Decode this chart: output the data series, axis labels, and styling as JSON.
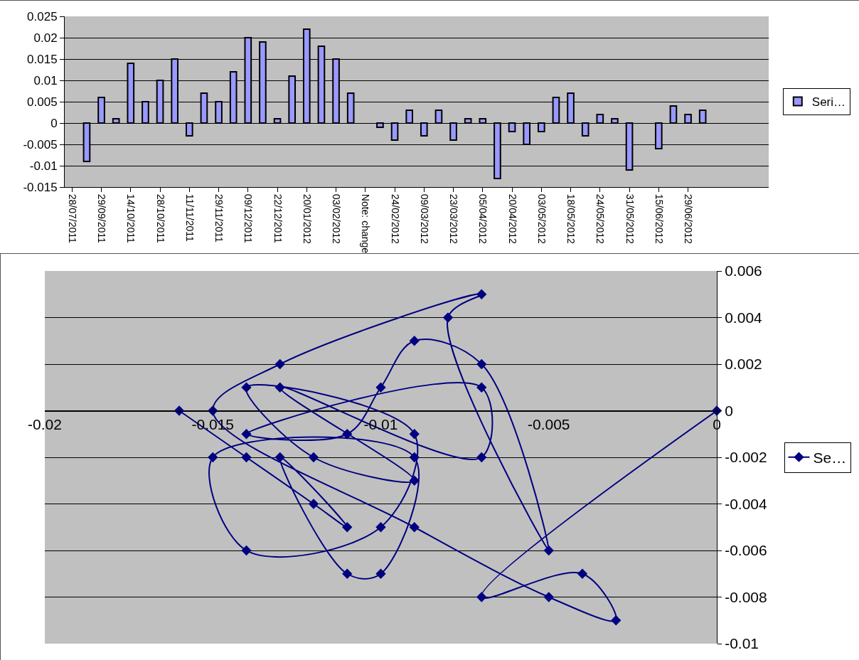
{
  "chart_data": [
    {
      "type": "bar",
      "categories": [
        "28/07/2011",
        null,
        "29/09/2011",
        null,
        "14/10/2011",
        null,
        "28/10/2011",
        null,
        "11/11/2011",
        null,
        "29/11/2011",
        null,
        "09/12/2011",
        null,
        "22/12/2011",
        null,
        "20/01/2012",
        null,
        "03/02/2012",
        null,
        "Note: change",
        null,
        "24/02/2012",
        null,
        "09/03/2012",
        null,
        "23/03/2012",
        null,
        "05/04/2012",
        null,
        "20/04/2012",
        null,
        "03/05/2012",
        null,
        "18/05/2012",
        null,
        "24/05/2012",
        null,
        "31/05/2012",
        null,
        "15/06/2012",
        null,
        "29/06/2012",
        null,
        null,
        null,
        null,
        null
      ],
      "series": [
        {
          "name": "Seri…",
          "color": "#9999ff",
          "values": [
            null,
            -0.009,
            0.006,
            0.001,
            0.014,
            0.005,
            0.01,
            0.015,
            -0.003,
            0.007,
            0.005,
            0.012,
            0.02,
            0.019,
            0.001,
            0.011,
            0.022,
            0.018,
            0.015,
            0.007,
            null,
            -0.001,
            -0.004,
            0.003,
            -0.003,
            0.003,
            -0.004,
            0.001,
            0.001,
            -0.013,
            -0.002,
            -0.005,
            -0.002,
            0.006,
            0.007,
            -0.003,
            0.002,
            0.001,
            -0.011,
            null,
            -0.006,
            0.004,
            0.002,
            0.003,
            null,
            null,
            null,
            null
          ]
        }
      ],
      "ylim": [
        -0.015,
        0.025
      ],
      "yticks": [
        -0.015,
        -0.01,
        -0.005,
        0,
        0.005,
        0.01,
        0.015,
        0.02,
        0.025
      ],
      "grid": "y",
      "legend": "right"
    },
    {
      "type": "line",
      "series": [
        {
          "name": "Se…",
          "color": "#000080",
          "x": [
            -0.016,
            -0.014,
            -0.012,
            -0.011,
            -0.013,
            -0.011,
            -0.01,
            -0.009,
            -0.015,
            -0.014,
            -0.01,
            -0.009,
            -0.014,
            -0.012,
            -0.009,
            -0.013,
            -0.007,
            -0.007,
            -0.014,
            -0.011,
            -0.01,
            -0.009,
            -0.007,
            -0.005,
            -0.008,
            -0.007,
            -0.013,
            -0.015,
            -0.009,
            -0.005,
            -0.003,
            -0.004,
            -0.007,
            0
          ],
          "values": [
            0,
            -0.002,
            -0.004,
            -0.005,
            -0.002,
            -0.007,
            -0.007,
            -0.002,
            -0.002,
            -0.006,
            -0.005,
            -0.001,
            0.001,
            -0.002,
            -0.003,
            0.001,
            -0.002,
            0.001,
            -0.001,
            -0.001,
            0.001,
            0.003,
            0.002,
            -0.006,
            0.004,
            0.005,
            0.002,
            0,
            -0.005,
            -0.008,
            -0.009,
            -0.007,
            -0.008,
            0
          ]
        }
      ],
      "marker": "diamond",
      "line_style": "solid",
      "xlim": [
        -0.02,
        0
      ],
      "xticks": [
        -0.02,
        -0.015,
        -0.01,
        -0.005,
        0
      ],
      "ylim": [
        -0.01,
        0.006
      ],
      "yticks": [
        -0.01,
        -0.008,
        -0.006,
        -0.004,
        -0.002,
        0,
        0.002,
        0.004,
        0.006
      ],
      "grid": "y",
      "legend": "right"
    }
  ]
}
